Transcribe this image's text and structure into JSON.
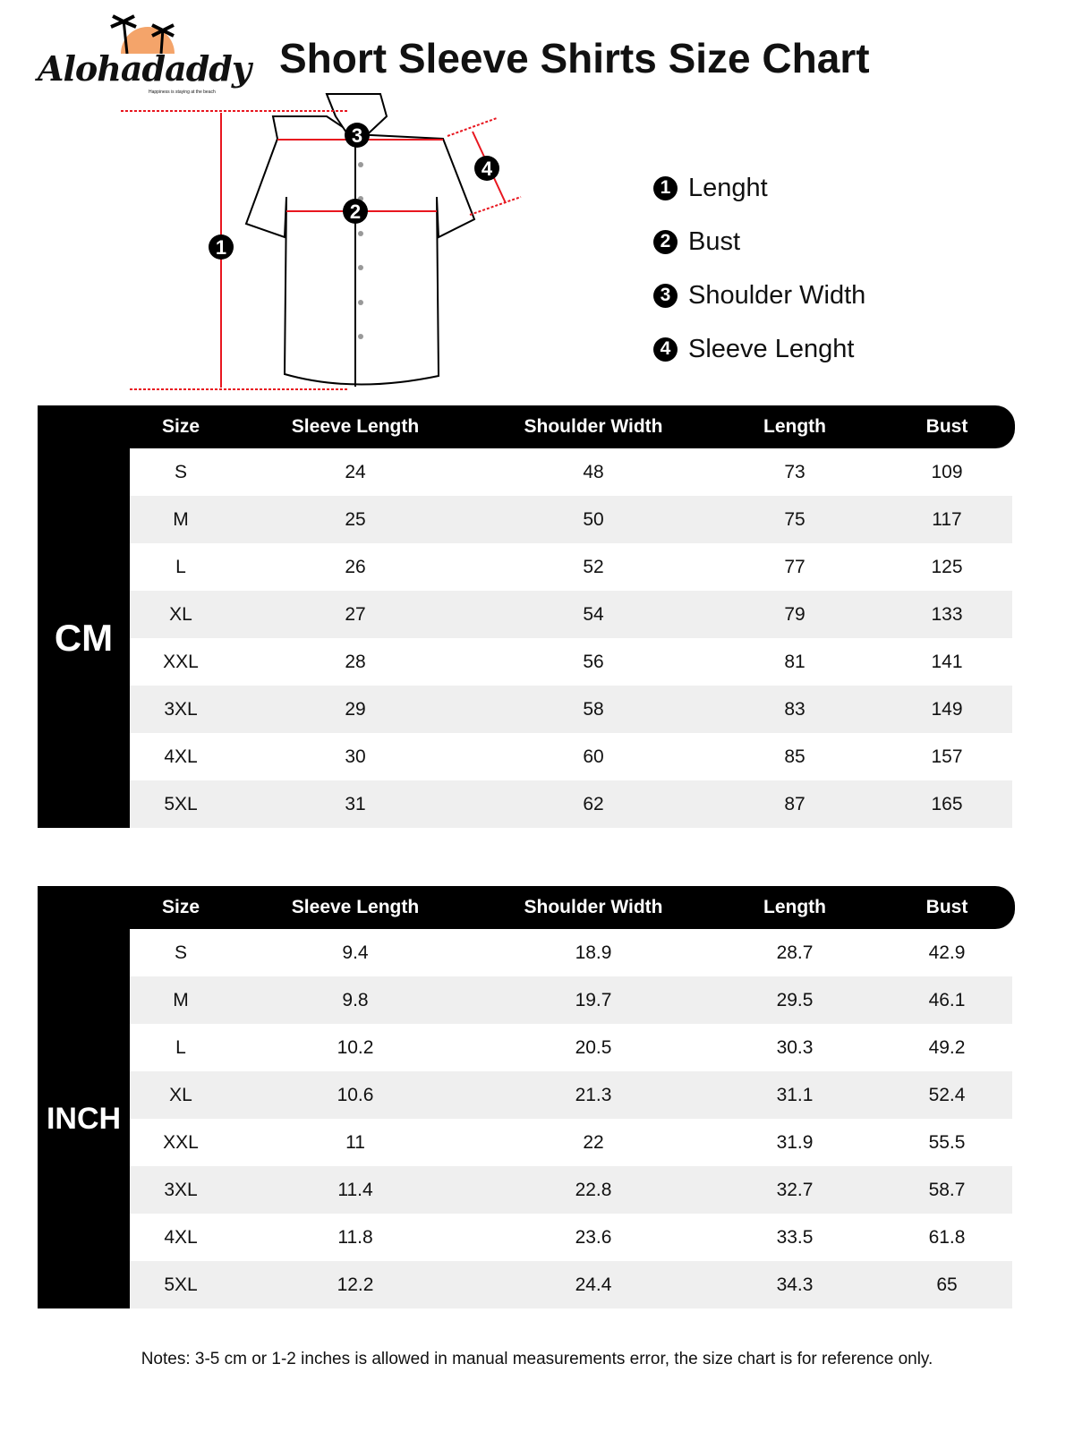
{
  "brand": {
    "name": "Alohadaddy",
    "tagline": "Happiness is staying at the beach",
    "sun_color": "#f4a46a"
  },
  "title": "Short Sleeve Shirts Size Chart",
  "diagram_markers": [
    "1",
    "2",
    "3",
    "4"
  ],
  "legend": [
    {
      "n": "1",
      "label": "Lenght"
    },
    {
      "n": "2",
      "label": "Bust"
    },
    {
      "n": "3",
      "label": "Shoulder Width"
    },
    {
      "n": "4",
      "label": "Sleeve Lenght"
    }
  ],
  "columns": [
    "Size",
    "Sleeve Length",
    "Shoulder Width",
    "Length",
    "Bust"
  ],
  "tables": [
    {
      "unit": "CM",
      "rows": [
        [
          "S",
          "24",
          "48",
          "73",
          "109"
        ],
        [
          "M",
          "25",
          "50",
          "75",
          "117"
        ],
        [
          "L",
          "26",
          "52",
          "77",
          "125"
        ],
        [
          "XL",
          "27",
          "54",
          "79",
          "133"
        ],
        [
          "XXL",
          "28",
          "56",
          "81",
          "141"
        ],
        [
          "3XL",
          "29",
          "58",
          "83",
          "149"
        ],
        [
          "4XL",
          "30",
          "60",
          "85",
          "157"
        ],
        [
          "5XL",
          "31",
          "62",
          "87",
          "165"
        ]
      ]
    },
    {
      "unit": "INCH",
      "rows": [
        [
          "S",
          "9.4",
          "18.9",
          "28.7",
          "42.9"
        ],
        [
          "M",
          "9.8",
          "19.7",
          "29.5",
          "46.1"
        ],
        [
          "L",
          "10.2",
          "20.5",
          "30.3",
          "49.2"
        ],
        [
          "XL",
          "10.6",
          "21.3",
          "31.1",
          "52.4"
        ],
        [
          "XXL",
          "11",
          "22",
          "31.9",
          "55.5"
        ],
        [
          "3XL",
          "11.4",
          "22.8",
          "32.7",
          "58.7"
        ],
        [
          "4XL",
          "11.8",
          "23.6",
          "33.5",
          "61.8"
        ],
        [
          "5XL",
          "12.2",
          "24.4",
          "34.3",
          "65"
        ]
      ]
    }
  ],
  "notes": "Notes: 3-5 cm or 1-2 inches is allowed in manual measurements error, the size chart is for reference only.",
  "accent_color": "#e8161f"
}
